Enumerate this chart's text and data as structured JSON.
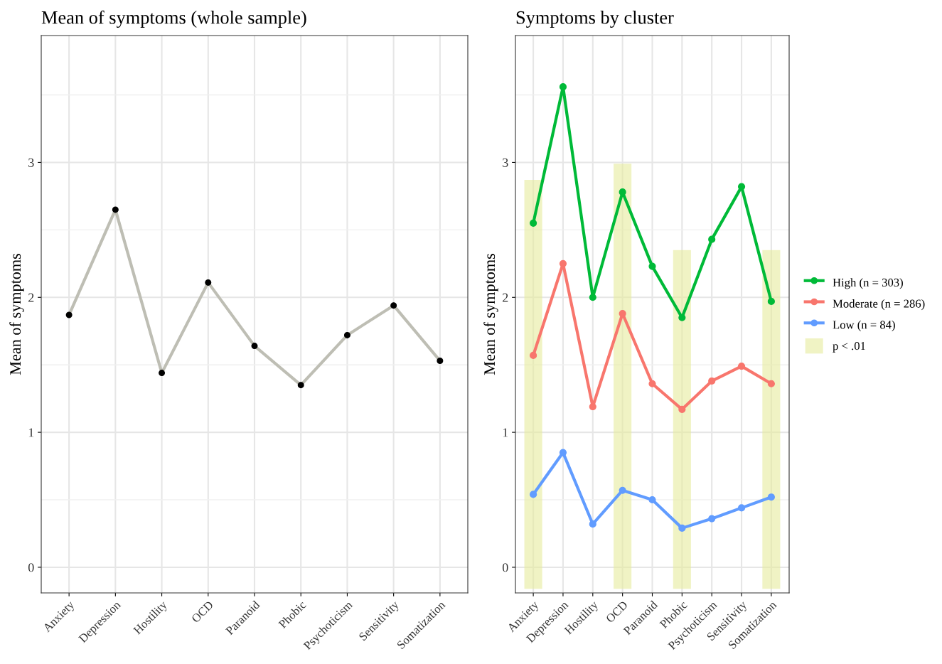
{
  "chart_data": [
    {
      "type": "line",
      "title": "Mean of symptoms (whole sample)",
      "ylabel": "Mean of symptoms",
      "categories": [
        "Anxiety",
        "Depression",
        "Hostility",
        "OCD",
        "Paranoid",
        "Phobic",
        "Psychoticism",
        "Sensitivity",
        "Somatization"
      ],
      "series": [
        {
          "color": "#bebeb4",
          "values": [
            1.87,
            2.65,
            1.44,
            2.11,
            1.64,
            1.35,
            1.72,
            1.94,
            1.53
          ]
        }
      ],
      "marker": "circle",
      "ylim": [
        -0.19,
        3.94
      ],
      "yticks": [
        0,
        1,
        2,
        3
      ],
      "grid": true,
      "legend": false
    },
    {
      "type": "line",
      "title": "Symptoms by cluster",
      "ylabel": "Mean of symptoms",
      "categories": [
        "Anxiety",
        "Depression",
        "Hostility",
        "OCD",
        "Paranoid",
        "Phobic",
        "Psychoticism",
        "Sensitivity",
        "Somatization"
      ],
      "series": [
        {
          "name": "High (n = 303)",
          "color": "#00ba38",
          "values": [
            2.55,
            3.56,
            2.0,
            2.78,
            2.23,
            1.85,
            2.43,
            2.82,
            1.97
          ]
        },
        {
          "name": "Moderate (n = 286)",
          "color": "#f8766d",
          "values": [
            1.57,
            2.25,
            1.19,
            1.88,
            1.36,
            1.17,
            1.38,
            1.49,
            1.36
          ]
        },
        {
          "name": "Low (n = 84)",
          "color": "#619cff",
          "values": [
            0.54,
            0.85,
            0.32,
            0.57,
            0.5,
            0.29,
            0.36,
            0.44,
            0.52
          ]
        },
        {
          "name": "p < .01",
          "type": "bar",
          "color": "#e6eb9c",
          "values": [
            3.03,
            null,
            null,
            3.15,
            null,
            2.51,
            null,
            null,
            2.51
          ],
          "base": [
            -0.16,
            null,
            null,
            -0.16,
            null,
            -0.16,
            null,
            null,
            -0.16
          ]
        }
      ],
      "marker": "circle",
      "ylim": [
        -0.19,
        3.94
      ],
      "yticks": [
        0,
        1,
        2,
        3
      ],
      "grid": true,
      "legend": "right"
    }
  ]
}
